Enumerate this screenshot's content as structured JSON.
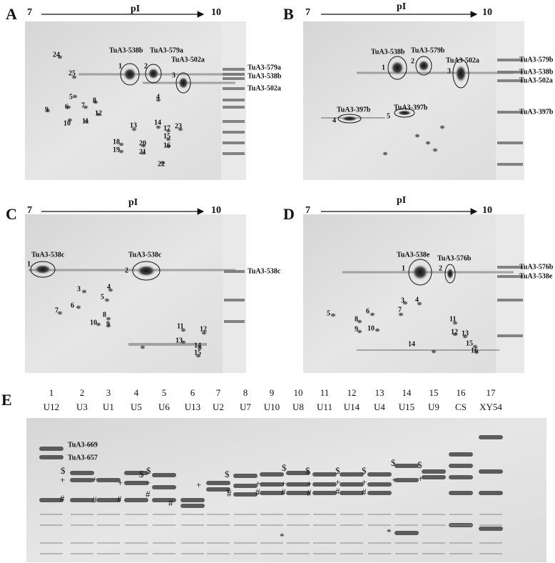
{
  "panels": [
    {
      "letter": "A",
      "axis": {
        "start": "7",
        "label": "pI",
        "end": "10"
      },
      "spot_names": [
        "TuA3-538b",
        "TuA3-579a",
        "TuA3-502a"
      ],
      "spot_numbers": [
        "1",
        "2",
        "3",
        "4",
        "5",
        "6",
        "7",
        "8",
        "9",
        "10",
        "11",
        "12",
        "13",
        "14",
        "15",
        "16",
        "17",
        "18",
        "19",
        "20",
        "21",
        "22",
        "23",
        "24",
        "25"
      ],
      "lane_labels": [
        "TuA3-579a",
        "TuA3-538b",
        "TuA3-502a"
      ]
    },
    {
      "letter": "B",
      "axis": {
        "start": "7",
        "label": "pI",
        "end": "10"
      },
      "spot_names": [
        "TuA3-538b",
        "TuA3-579b",
        "TuA3-502a",
        "TuA3-397b",
        "TuA3-397b"
      ],
      "spot_numbers": [
        "1",
        "2",
        "3",
        "4",
        "5"
      ],
      "lane_labels": [
        "TuA3-579b",
        "TuA3-538b",
        "TuA3-502a",
        "TuA3-397b"
      ]
    },
    {
      "letter": "C",
      "axis": {
        "start": "7",
        "label": "pI",
        "end": "10"
      },
      "spot_names": [
        "TuA3-538c",
        "TuA3-538c"
      ],
      "spot_numbers": [
        "1",
        "2",
        "3",
        "4",
        "5",
        "6",
        "7",
        "8",
        "9",
        "10",
        "11",
        "12",
        "13",
        "14",
        "15"
      ],
      "lane_labels": [
        "TuA3-538c"
      ]
    },
    {
      "letter": "D",
      "axis": {
        "start": "7",
        "label": "pI",
        "end": "10"
      },
      "spot_names": [
        "TuA3-538e",
        "TuA3-576b"
      ],
      "spot_numbers": [
        "1",
        "2",
        "3",
        "4",
        "5",
        "6",
        "7",
        "8",
        "9",
        "10",
        "11",
        "12",
        "13",
        "14",
        "15",
        "16"
      ],
      "lane_labels": [
        "TuA3-576b",
        "TuA3-538e"
      ]
    }
  ],
  "panel_e": {
    "letter": "E",
    "lanes": [
      {
        "number": "1",
        "name": "U12"
      },
      {
        "number": "2",
        "name": "U3"
      },
      {
        "number": "3",
        "name": "U1"
      },
      {
        "number": "4",
        "name": "U5"
      },
      {
        "number": "5",
        "name": "U6"
      },
      {
        "number": "6",
        "name": "U13"
      },
      {
        "number": "7",
        "name": "U2"
      },
      {
        "number": "8",
        "name": "U7"
      },
      {
        "number": "9",
        "name": "U10"
      },
      {
        "number": "10",
        "name": "U8"
      },
      {
        "number": "11",
        "name": "U11"
      },
      {
        "number": "12",
        "name": "U14"
      },
      {
        "number": "13",
        "name": "U4"
      },
      {
        "number": "14",
        "name": "U15"
      },
      {
        "number": "15",
        "name": "U9"
      },
      {
        "number": "16",
        "name": "CS"
      },
      {
        "number": "17",
        "name": "XY54"
      }
    ],
    "band_labels": [
      "TuA3-669",
      "TuA3-657"
    ],
    "markers": [
      "$",
      "$",
      "$",
      "$",
      "$",
      "$",
      "$",
      "$",
      "$",
      "$",
      "+",
      "+",
      "+",
      "+",
      "+",
      "+",
      "+",
      "+",
      "+",
      "+",
      "+",
      "+",
      "+",
      "#",
      "#",
      "#",
      "#",
      "#",
      "#",
      "#",
      "#",
      "#",
      "#",
      "#",
      "*",
      "*"
    ]
  }
}
